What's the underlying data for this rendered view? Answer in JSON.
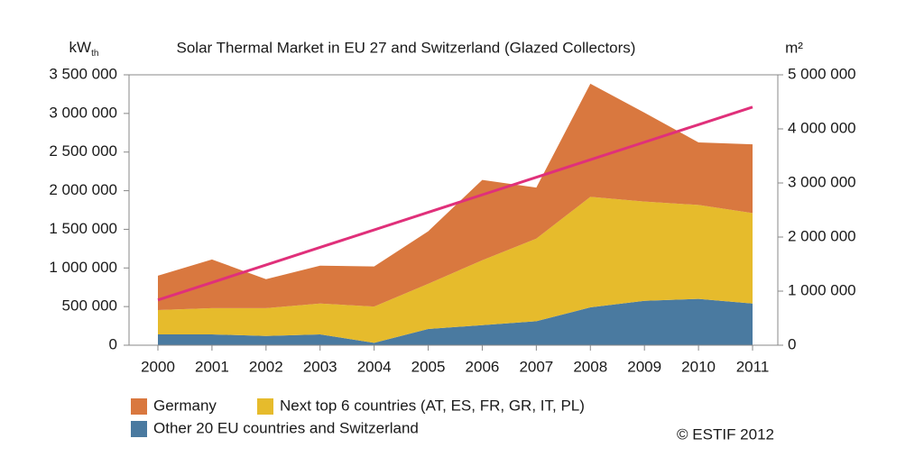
{
  "chart_data": {
    "type": "stacked-area",
    "title": "Solar Thermal Market in EU 27 and Switzerland (Glazed Collectors)",
    "y_label": "kW",
    "y_label_subscript": "th",
    "y2_label": "m²",
    "source": "© ESTIF 2012",
    "categories": [
      "2000",
      "2001",
      "2002",
      "2003",
      "2004",
      "2005",
      "2006",
      "2007",
      "2008",
      "2009",
      "2010",
      "2011"
    ],
    "series": [
      {
        "name": "Germany",
        "color": "#d9783f",
        "values": [
          445000,
          630000,
          375000,
          490000,
          520000,
          680000,
          1040000,
          660000,
          1465000,
          1150000,
          810000,
          890000
        ]
      },
      {
        "name": "Next top 6 countries (AT, ES, FR, GR, IT, PL)",
        "color": "#e6bb2c",
        "values": [
          315000,
          340000,
          360000,
          400000,
          470000,
          585000,
          840000,
          1070000,
          1430000,
          1285000,
          1215000,
          1170000
        ]
      },
      {
        "name": "Other 20 EU countries and Switzerland",
        "color": "#4a7aa0",
        "values": [
          140000,
          140000,
          120000,
          140000,
          30000,
          210000,
          260000,
          310000,
          490000,
          575000,
          600000,
          540000
        ]
      }
    ],
    "trend": {
      "color": "#e0307a",
      "values": [
        585000,
        812000,
        1039000,
        1266000,
        1493000,
        1720000,
        1947000,
        2174000,
        2401000,
        2628000,
        2855000,
        3082000
      ]
    },
    "ylim": [
      0,
      3500000
    ],
    "yticks": [
      0,
      {
        "value": 500000,
        "label": "500 000"
      },
      {
        "value": 1000000,
        "label": "1 000 000"
      },
      {
        "value": 1500000,
        "label": "1 500 000"
      },
      {
        "value": 2000000,
        "label": "2 000 000"
      },
      {
        "value": 2500000,
        "label": "2 500 000"
      },
      {
        "value": 3000000,
        "label": "3 000 000"
      },
      {
        "value": 3500000,
        "label": "3 500 000"
      }
    ],
    "y2lim": [
      0,
      5000000
    ],
    "y2ticks": [
      0,
      {
        "value": 1000000,
        "label": "1 000 000"
      },
      {
        "value": 2000000,
        "label": "2 000 000"
      },
      {
        "value": 3000000,
        "label": "3 000 000"
      },
      {
        "value": 4000000,
        "label": "4 000 000"
      },
      {
        "value": 5000000,
        "label": "5 000 000"
      }
    ]
  }
}
